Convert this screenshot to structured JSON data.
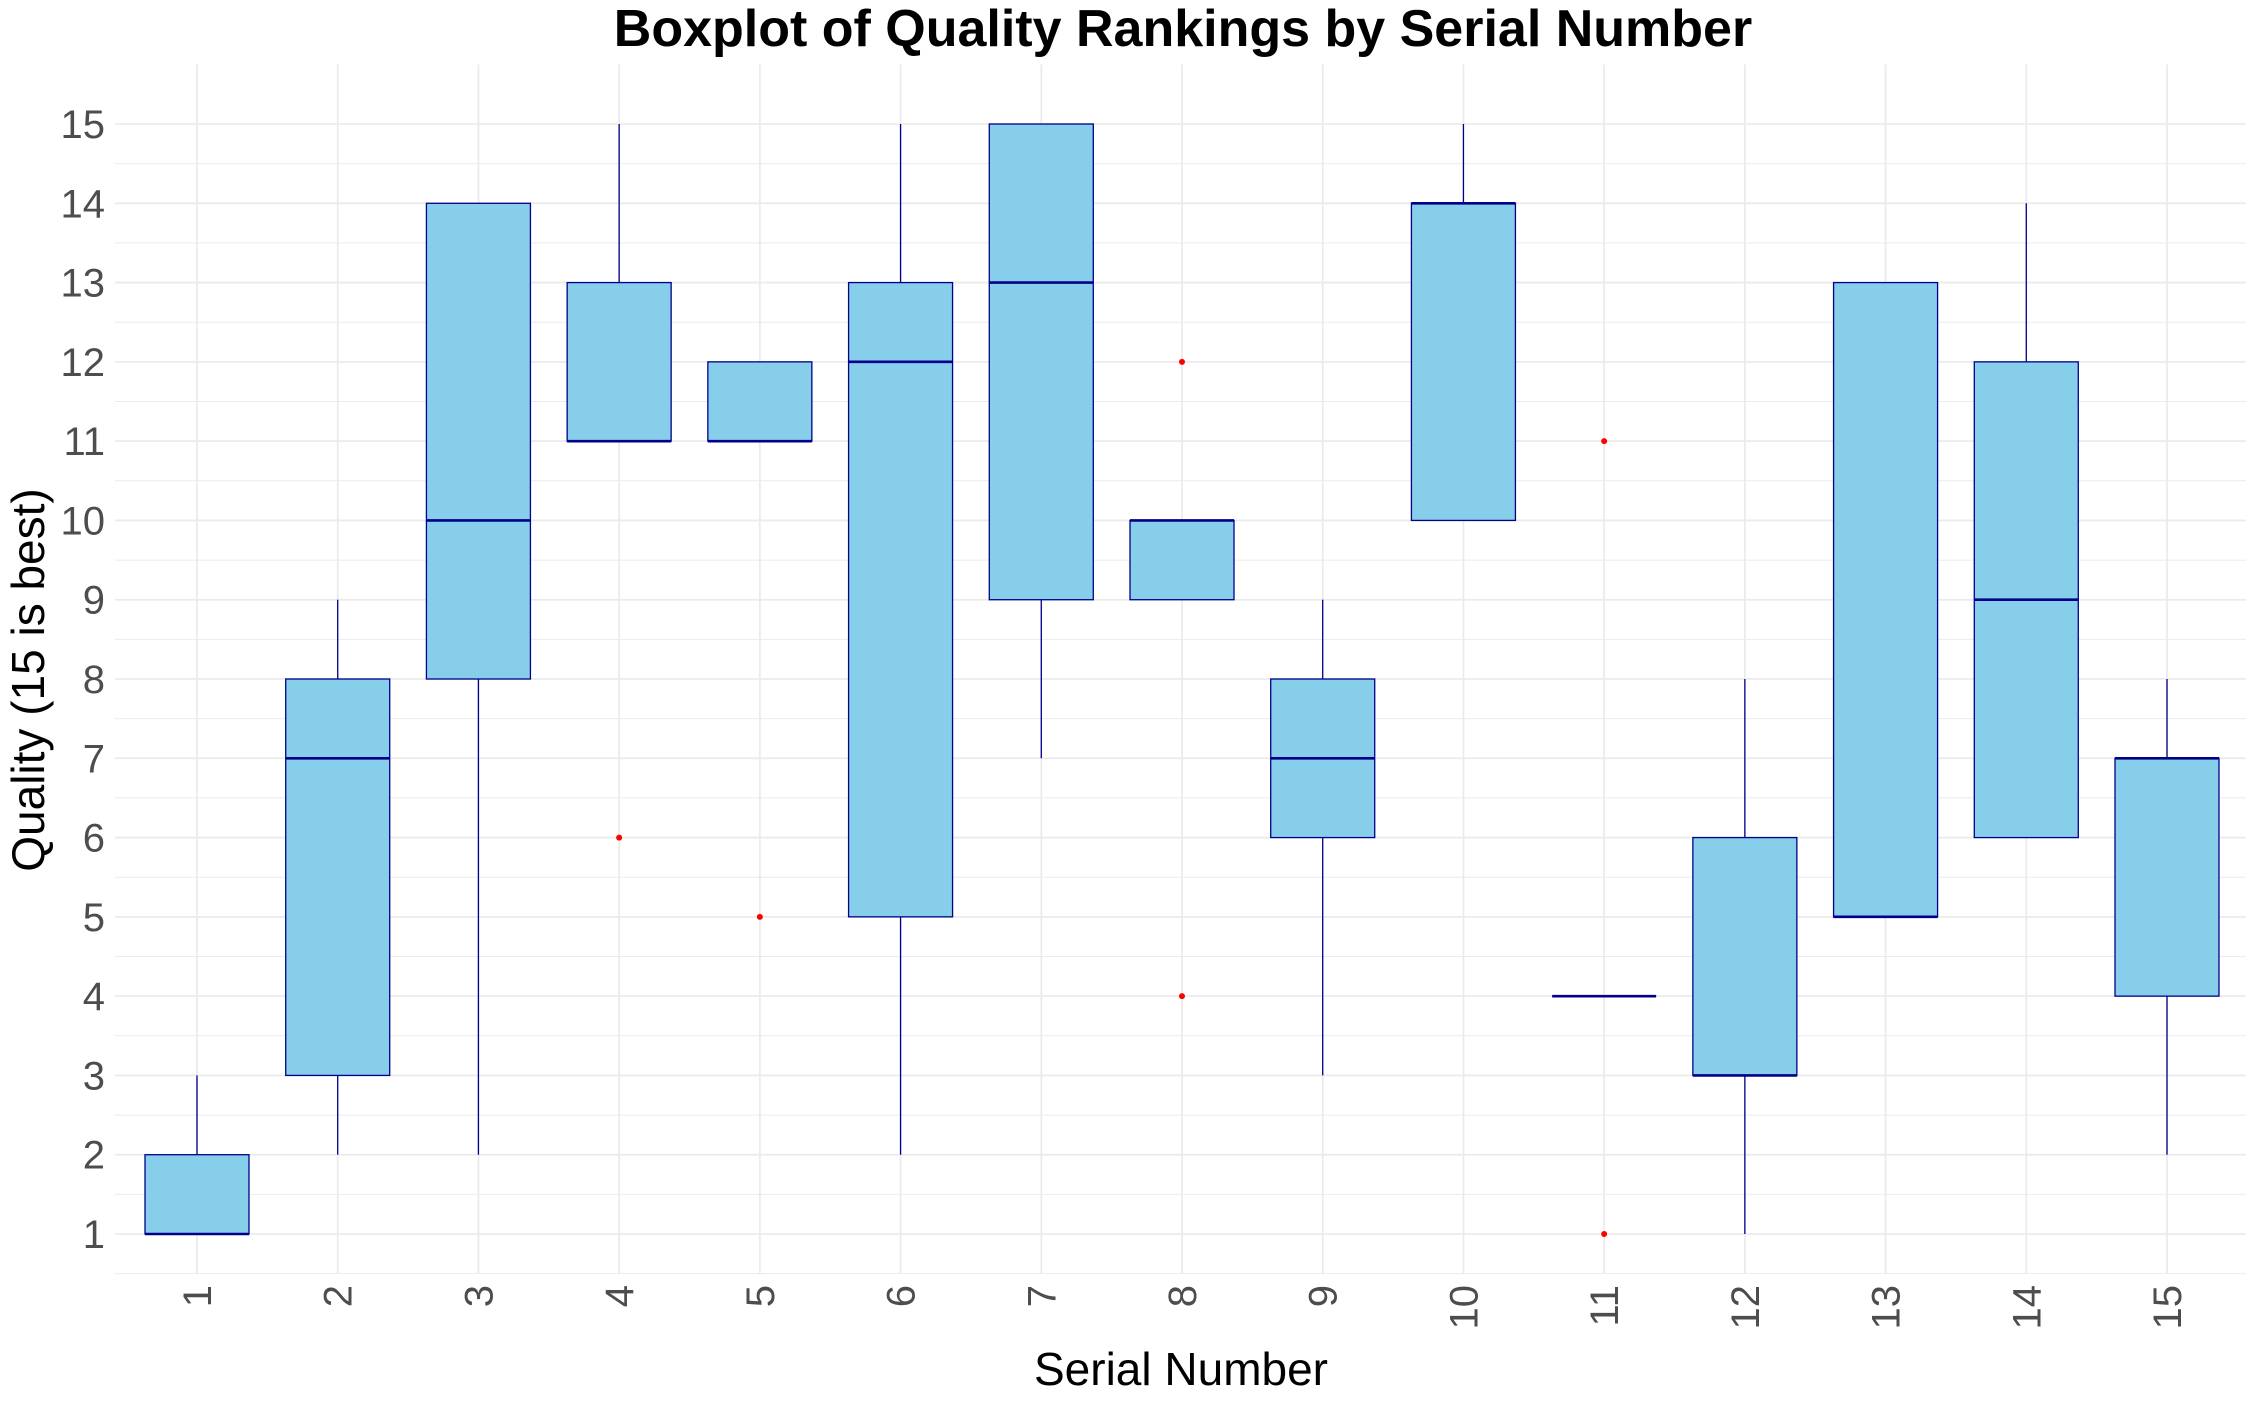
{
  "chart_data": {
    "type": "boxplot",
    "title": "Boxplot of Quality Rankings by Serial Number",
    "xlabel": "Serial Number",
    "ylabel": "Quality (15 is best)",
    "categories": [
      "1",
      "2",
      "3",
      "4",
      "5",
      "6",
      "7",
      "8",
      "9",
      "10",
      "11",
      "12",
      "13",
      "14",
      "15"
    ],
    "y_ticks": [
      1,
      2,
      3,
      4,
      5,
      6,
      7,
      8,
      9,
      10,
      11,
      12,
      13,
      14,
      15
    ],
    "ylim": [
      0.5,
      15.75
    ],
    "grid": true,
    "colors": {
      "box_fill": "#87CEEB",
      "box_stroke": "#00008B",
      "outlier": "#FF0000",
      "grid": "#EBEBEB"
    },
    "boxes": [
      {
        "min": 1,
        "q1": 1,
        "median": 1,
        "q3": 2,
        "max": 3,
        "outliers": []
      },
      {
        "min": 2,
        "q1": 3,
        "median": 7,
        "q3": 8,
        "max": 9,
        "outliers": []
      },
      {
        "min": 2,
        "q1": 8,
        "median": 10,
        "q3": 14,
        "max": 14,
        "outliers": []
      },
      {
        "min": 11,
        "q1": 11,
        "median": 11,
        "q3": 13,
        "max": 15,
        "outliers": [
          6
        ]
      },
      {
        "min": 11,
        "q1": 11,
        "median": 11,
        "q3": 12,
        "max": 12,
        "outliers": [
          5
        ]
      },
      {
        "min": 2,
        "q1": 5,
        "median": 12,
        "q3": 13,
        "max": 15,
        "outliers": []
      },
      {
        "min": 7,
        "q1": 9,
        "median": 13,
        "q3": 15,
        "max": 15,
        "outliers": []
      },
      {
        "min": 9,
        "q1": 9,
        "median": 10,
        "q3": 10,
        "max": 10,
        "outliers": [
          12,
          4
        ]
      },
      {
        "min": 3,
        "q1": 6,
        "median": 7,
        "q3": 8,
        "max": 9,
        "outliers": []
      },
      {
        "min": 10,
        "q1": 10,
        "median": 14,
        "q3": 14,
        "max": 15,
        "outliers": []
      },
      {
        "min": 4,
        "q1": 4,
        "median": 4,
        "q3": 4,
        "max": 4,
        "outliers": [
          11,
          1
        ]
      },
      {
        "min": 1,
        "q1": 3,
        "median": 3,
        "q3": 6,
        "max": 8,
        "outliers": []
      },
      {
        "min": 5,
        "q1": 5,
        "median": 5,
        "q3": 13,
        "max": 13,
        "outliers": []
      },
      {
        "min": 6,
        "q1": 6,
        "median": 9,
        "q3": 12,
        "max": 14,
        "outliers": []
      },
      {
        "min": 2,
        "q1": 4,
        "median": 7,
        "q3": 7,
        "max": 8,
        "outliers": []
      }
    ]
  }
}
